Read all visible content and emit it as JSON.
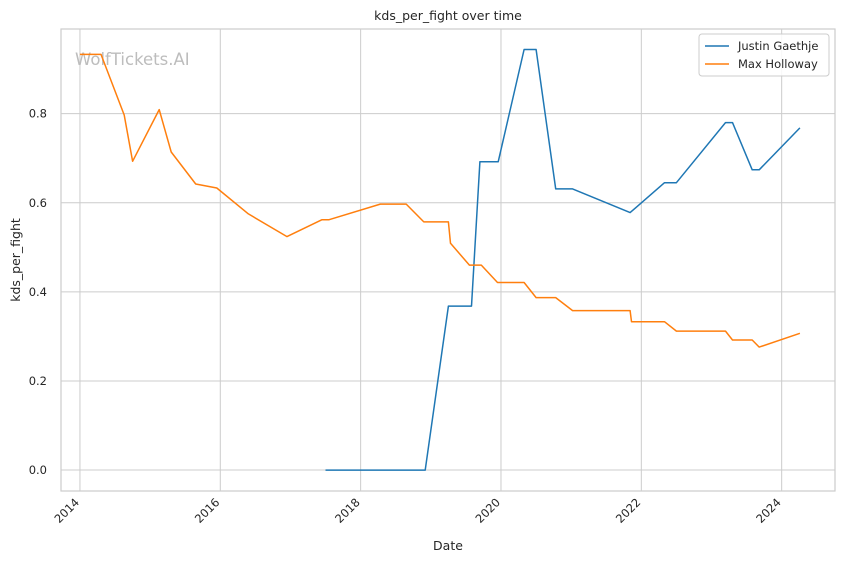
{
  "chart_data": {
    "type": "line",
    "title": "kds_per_fight over time",
    "xlabel": "Date",
    "ylabel": "kds_per_fight",
    "watermark": "WolfTickets.AI",
    "xlim": [
      2013.73,
      2024.76
    ],
    "ylim": [
      -0.047,
      0.99
    ],
    "x_ticks": [
      2014,
      2016,
      2018,
      2020,
      2022,
      2024
    ],
    "y_ticks": [
      0.0,
      0.2,
      0.4,
      0.6,
      0.8
    ],
    "y_tick_labels": [
      "0.0",
      "0.2",
      "0.4",
      "0.6",
      "0.8"
    ],
    "grid": true,
    "legend_position": "top-right",
    "series": [
      {
        "name": "Justin Gaethje",
        "color": "#1f77b4",
        "points": [
          [
            2017.5,
            0.0
          ],
          [
            2018.92,
            0.0
          ],
          [
            2019.25,
            0.368
          ],
          [
            2019.58,
            0.368
          ],
          [
            2019.7,
            0.692
          ],
          [
            2019.96,
            0.692
          ],
          [
            2020.33,
            0.944
          ],
          [
            2020.5,
            0.944
          ],
          [
            2020.78,
            0.631
          ],
          [
            2021.02,
            0.631
          ],
          [
            2021.84,
            0.578
          ],
          [
            2022.33,
            0.645
          ],
          [
            2022.5,
            0.645
          ],
          [
            2023.2,
            0.78
          ],
          [
            2023.3,
            0.78
          ],
          [
            2023.58,
            0.674
          ],
          [
            2023.68,
            0.674
          ],
          [
            2024.26,
            0.768
          ]
        ]
      },
      {
        "name": "Max Holloway",
        "color": "#ff7f0e",
        "points": [
          [
            2014.0,
            0.933
          ],
          [
            2014.3,
            0.933
          ],
          [
            2014.63,
            0.797
          ],
          [
            2014.75,
            0.693
          ],
          [
            2015.13,
            0.809
          ],
          [
            2015.3,
            0.714
          ],
          [
            2015.65,
            0.642
          ],
          [
            2015.95,
            0.633
          ],
          [
            2016.4,
            0.575
          ],
          [
            2016.95,
            0.524
          ],
          [
            2017.45,
            0.562
          ],
          [
            2017.55,
            0.562
          ],
          [
            2018.28,
            0.597
          ],
          [
            2018.65,
            0.597
          ],
          [
            2018.9,
            0.557
          ],
          [
            2019.25,
            0.557
          ],
          [
            2019.28,
            0.509
          ],
          [
            2019.55,
            0.46
          ],
          [
            2019.72,
            0.46
          ],
          [
            2019.95,
            0.421
          ],
          [
            2020.33,
            0.421
          ],
          [
            2020.5,
            0.387
          ],
          [
            2020.78,
            0.387
          ],
          [
            2021.02,
            0.358
          ],
          [
            2021.84,
            0.358
          ],
          [
            2021.86,
            0.333
          ],
          [
            2022.33,
            0.333
          ],
          [
            2022.5,
            0.312
          ],
          [
            2023.2,
            0.312
          ],
          [
            2023.3,
            0.292
          ],
          [
            2023.58,
            0.292
          ],
          [
            2023.68,
            0.276
          ],
          [
            2024.26,
            0.307
          ]
        ]
      }
    ]
  }
}
